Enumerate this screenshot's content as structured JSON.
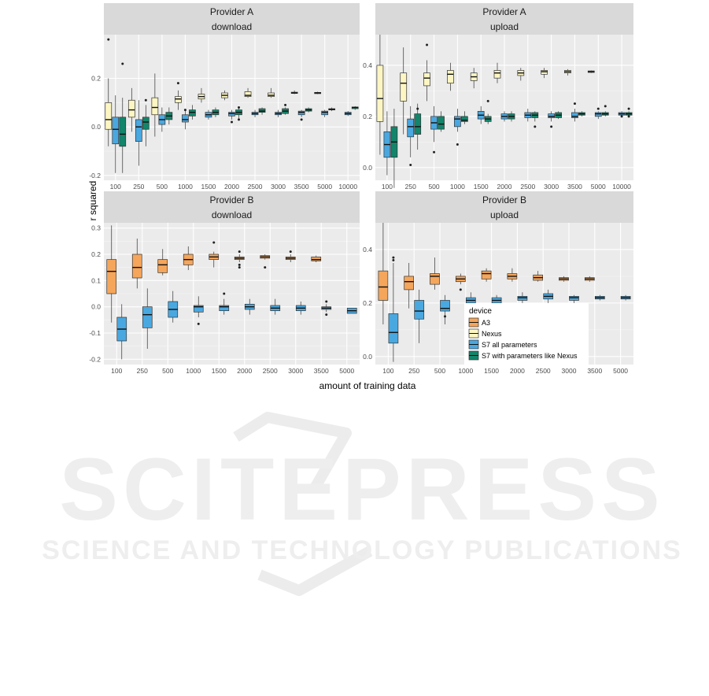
{
  "figure": {
    "ylabel": "r squared",
    "xlabel": "amount of training data",
    "legend_title": "device"
  },
  "watermark": {
    "line1": "SCITEPRESS",
    "line2": "SCIENCE AND TECHNOLOGY PUBLICATIONS"
  },
  "colors": {
    "A3": "#f5a65b",
    "Nexus": "#fdf6c3",
    "S7 all parameters": "#4aa8e0",
    "S7 with parameters like Nexus": "#12856a",
    "panel_bg": "#ebebeb",
    "strip_bg": "#d9d9d9"
  },
  "chart_data": [
    {
      "type": "box",
      "strip": [
        "Provider A",
        "download"
      ],
      "categories": [
        "100",
        "250",
        "500",
        "1000",
        "1500",
        "2000",
        "2500",
        "3000",
        "3500",
        "5000",
        "10000"
      ],
      "yticks": [
        -0.2,
        0.0,
        0.2
      ],
      "ylim": [
        -0.22,
        0.38
      ],
      "series": [
        {
          "name": "Nexus",
          "boxes": [
            [
              -0.08,
              -0.01,
              0.03,
              0.1,
              0.2,
              [
                0.36
              ]
            ],
            [
              -0.02,
              0.04,
              0.07,
              0.11,
              0.16,
              []
            ],
            [
              -0.04,
              0.05,
              0.08,
              0.12,
              0.22,
              []
            ],
            [
              0.07,
              0.1,
              0.115,
              0.125,
              0.15,
              [
                0.18
              ]
            ],
            [
              0.1,
              0.115,
              0.125,
              0.135,
              0.16,
              []
            ],
            [
              0.11,
              0.12,
              0.13,
              0.14,
              0.15,
              []
            ],
            [
              0.12,
              0.125,
              0.13,
              0.145,
              0.16,
              []
            ],
            [
              0.12,
              0.125,
              0.13,
              0.14,
              0.16,
              []
            ],
            [
              0.135,
              0.138,
              0.14,
              0.143,
              0.15,
              []
            ],
            [
              0.135,
              0.137,
              0.14,
              0.142,
              0.145,
              []
            ],
            null
          ]
        },
        {
          "name": "S7 all parameters",
          "boxes": [
            [
              -0.19,
              -0.07,
              -0.01,
              0.04,
              0.13,
              []
            ],
            [
              -0.16,
              -0.06,
              0.0,
              0.03,
              0.11,
              []
            ],
            [
              -0.02,
              0.01,
              0.03,
              0.05,
              0.08,
              []
            ],
            [
              -0.01,
              0.02,
              0.03,
              0.05,
              0.07,
              [
                0.07
              ]
            ],
            [
              0.03,
              0.04,
              0.05,
              0.06,
              0.07,
              []
            ],
            [
              0.03,
              0.045,
              0.055,
              0.06,
              0.07,
              [
                0.02
              ]
            ],
            [
              0.04,
              0.05,
              0.055,
              0.06,
              0.07,
              []
            ],
            [
              0.04,
              0.05,
              0.055,
              0.06,
              0.07,
              []
            ],
            [
              0.04,
              0.05,
              0.06,
              0.065,
              0.07,
              [
                0.03
              ]
            ],
            [
              0.04,
              0.05,
              0.06,
              0.065,
              0.07,
              []
            ],
            [
              0.045,
              0.05,
              0.055,
              0.06,
              0.065,
              []
            ]
          ]
        },
        {
          "name": "S7 with parameters like Nexus",
          "boxes": [
            [
              -0.19,
              -0.08,
              -0.03,
              0.04,
              0.12,
              [
                0.26
              ]
            ],
            [
              -0.08,
              -0.01,
              0.02,
              0.04,
              0.09,
              [
                0.11
              ]
            ],
            [
              0.01,
              0.03,
              0.045,
              0.06,
              0.08,
              []
            ],
            [
              0.03,
              0.045,
              0.06,
              0.07,
              0.09,
              []
            ],
            [
              0.04,
              0.05,
              0.06,
              0.07,
              0.08,
              []
            ],
            [
              0.03,
              0.05,
              0.06,
              0.07,
              0.08,
              [
                0.03,
                0.08
              ]
            ],
            [
              0.05,
              0.06,
              0.065,
              0.075,
              0.08,
              []
            ],
            [
              0.05,
              0.055,
              0.065,
              0.075,
              0.08,
              [
                0.09
              ]
            ],
            [
              0.06,
              0.065,
              0.07,
              0.075,
              0.08,
              []
            ],
            [
              0.065,
              0.07,
              0.072,
              0.075,
              0.08,
              []
            ],
            [
              0.07,
              0.075,
              0.08,
              0.082,
              0.085,
              []
            ]
          ]
        }
      ]
    },
    {
      "type": "box",
      "strip": [
        "Provider A",
        "upload"
      ],
      "categories": [
        "100",
        "250",
        "500",
        "1000",
        "1500",
        "2000",
        "2500",
        "3000",
        "3500",
        "5000",
        "10000"
      ],
      "yticks": [
        0.0,
        0.2,
        0.4
      ],
      "ylim": [
        -0.05,
        0.52
      ],
      "series": [
        {
          "name": "Nexus",
          "boxes": [
            [
              0.05,
              0.18,
              0.27,
              0.4,
              0.52,
              []
            ],
            [
              0.13,
              0.26,
              0.33,
              0.37,
              0.47,
              []
            ],
            [
              0.26,
              0.32,
              0.35,
              0.37,
              0.42,
              [
                0.48
              ]
            ],
            [
              0.3,
              0.33,
              0.365,
              0.38,
              0.41,
              []
            ],
            [
              0.31,
              0.34,
              0.355,
              0.37,
              0.39,
              []
            ],
            [
              0.33,
              0.35,
              0.37,
              0.38,
              0.41,
              []
            ],
            [
              0.34,
              0.36,
              0.37,
              0.38,
              0.39,
              []
            ],
            [
              0.35,
              0.365,
              0.375,
              0.38,
              0.39,
              []
            ],
            [
              0.36,
              0.37,
              0.375,
              0.38,
              0.385,
              []
            ],
            [
              0.37,
              0.372,
              0.375,
              0.378,
              0.38,
              []
            ],
            null
          ]
        },
        {
          "name": "S7 all parameters",
          "boxes": [
            [
              -0.03,
              0.04,
              0.09,
              0.14,
              0.22,
              []
            ],
            [
              0.04,
              0.12,
              0.16,
              0.19,
              0.24,
              [
                0.01
              ]
            ],
            [
              0.1,
              0.15,
              0.175,
              0.2,
              0.24,
              [
                0.06
              ]
            ],
            [
              0.14,
              0.16,
              0.19,
              0.2,
              0.23,
              [
                0.09
              ]
            ],
            [
              0.17,
              0.19,
              0.205,
              0.22,
              0.24,
              []
            ],
            [
              0.18,
              0.19,
              0.2,
              0.21,
              0.22,
              []
            ],
            [
              0.18,
              0.195,
              0.205,
              0.215,
              0.23,
              []
            ],
            [
              0.18,
              0.195,
              0.2,
              0.21,
              0.22,
              [
                0.16
              ]
            ],
            [
              0.18,
              0.195,
              0.2,
              0.215,
              0.23,
              [
                0.25
              ]
            ],
            [
              0.19,
              0.2,
              0.21,
              0.215,
              0.22,
              [
                0.23
              ]
            ],
            [
              0.2,
              0.205,
              0.21,
              0.215,
              0.22,
              [
                0.2
              ]
            ]
          ]
        },
        {
          "name": "S7 with parameters like Nexus",
          "boxes": [
            [
              -0.08,
              0.04,
              0.1,
              0.16,
              0.23,
              []
            ],
            [
              0.07,
              0.13,
              0.16,
              0.21,
              0.25,
              [
                0.23
              ]
            ],
            [
              0.14,
              0.15,
              0.17,
              0.2,
              0.22,
              []
            ],
            [
              0.17,
              0.18,
              0.185,
              0.2,
              0.22,
              []
            ],
            [
              0.17,
              0.18,
              0.19,
              0.2,
              0.21,
              [
                0.26
              ]
            ],
            [
              0.18,
              0.19,
              0.2,
              0.21,
              0.22,
              []
            ],
            [
              0.18,
              0.195,
              0.205,
              0.215,
              0.22,
              [
                0.16
              ]
            ],
            [
              0.19,
              0.195,
              0.205,
              0.215,
              0.22,
              []
            ],
            [
              0.2,
              0.205,
              0.21,
              0.215,
              0.22,
              []
            ],
            [
              0.2,
              0.205,
              0.21,
              0.215,
              0.22,
              [
                0.24
              ]
            ],
            [
              0.2,
              0.205,
              0.21,
              0.215,
              0.22,
              [
                0.23,
                0.2
              ]
            ]
          ]
        }
      ]
    },
    {
      "type": "box",
      "strip": [
        "Provider B",
        "download"
      ],
      "categories": [
        "100",
        "250",
        "500",
        "1000",
        "1500",
        "2000",
        "2500",
        "3000",
        "3500",
        "5000"
      ],
      "yticks": [
        -0.2,
        -0.1,
        0.0,
        0.1,
        0.2,
        0.3
      ],
      "ylim": [
        -0.22,
        0.32
      ],
      "series": [
        {
          "name": "A3",
          "boxes": [
            [
              -0.06,
              0.05,
              0.135,
              0.18,
              0.31,
              []
            ],
            [
              0.07,
              0.11,
              0.15,
              0.2,
              0.26,
              []
            ],
            [
              0.12,
              0.13,
              0.16,
              0.18,
              0.22,
              []
            ],
            [
              0.14,
              0.16,
              0.18,
              0.2,
              0.23,
              []
            ],
            [
              0.15,
              0.18,
              0.19,
              0.2,
              0.21,
              [
                0.245
              ]
            ],
            [
              0.17,
              0.18,
              0.185,
              0.19,
              0.2,
              [
                0.21,
                0.16,
                0.15
              ]
            ],
            [
              0.18,
              0.185,
              0.19,
              0.195,
              0.2,
              [
                0.15
              ]
            ],
            [
              0.17,
              0.18,
              0.185,
              0.19,
              0.2,
              [
                0.21
              ]
            ],
            [
              0.17,
              0.175,
              0.18,
              0.19,
              0.195,
              []
            ],
            null
          ]
        },
        {
          "name": "S7 all parameters",
          "boxes": [
            [
              -0.2,
              -0.13,
              -0.085,
              -0.04,
              0.01,
              []
            ],
            [
              -0.16,
              -0.08,
              -0.03,
              0.0,
              0.07,
              []
            ],
            [
              -0.06,
              -0.04,
              -0.01,
              0.02,
              0.06,
              []
            ],
            [
              -0.04,
              -0.02,
              0.0,
              0.005,
              0.04,
              [
                -0.065
              ]
            ],
            [
              -0.03,
              -0.015,
              0.0,
              0.005,
              0.03,
              [
                0.05
              ]
            ],
            [
              -0.03,
              -0.01,
              0.0,
              0.01,
              0.03,
              []
            ],
            [
              -0.03,
              -0.015,
              -0.005,
              0.005,
              0.03,
              []
            ],
            [
              -0.03,
              -0.015,
              -0.005,
              0.005,
              0.02,
              []
            ],
            [
              -0.02,
              -0.01,
              -0.005,
              0.0,
              0.01,
              [
                0.02,
                -0.03
              ]
            ],
            [
              -0.025,
              -0.025,
              -0.015,
              -0.005,
              -0.005,
              []
            ]
          ]
        }
      ]
    },
    {
      "type": "box",
      "strip": [
        "Provider B",
        "upload"
      ],
      "categories": [
        "100",
        "250",
        "500",
        "1000",
        "1500",
        "2000",
        "2500",
        "3000",
        "3500",
        "5000"
      ],
      "yticks": [
        0.0,
        0.2,
        0.4
      ],
      "ylim": [
        -0.03,
        0.5
      ],
      "series": [
        {
          "name": "A3",
          "boxes": [
            [
              0.12,
              0.21,
              0.26,
              0.32,
              0.5,
              []
            ],
            [
              0.18,
              0.25,
              0.28,
              0.3,
              0.35,
              []
            ],
            [
              0.25,
              0.27,
              0.3,
              0.31,
              0.37,
              []
            ],
            [
              0.27,
              0.28,
              0.29,
              0.3,
              0.31,
              [
                0.25
              ]
            ],
            [
              0.28,
              0.29,
              0.31,
              0.32,
              0.33,
              []
            ],
            [
              0.28,
              0.29,
              0.3,
              0.31,
              0.33,
              []
            ],
            [
              0.28,
              0.285,
              0.295,
              0.305,
              0.32,
              []
            ],
            [
              0.28,
              0.285,
              0.29,
              0.295,
              0.3,
              []
            ],
            [
              0.28,
              0.285,
              0.29,
              0.295,
              0.3,
              []
            ],
            null
          ]
        },
        {
          "name": "S7 all parameters",
          "boxes": [
            [
              -0.02,
              0.05,
              0.09,
              0.16,
              0.35,
              [
                0.36,
                0.37
              ]
            ],
            [
              0.05,
              0.14,
              0.17,
              0.21,
              0.25,
              []
            ],
            [
              0.12,
              0.17,
              0.18,
              0.21,
              0.23,
              [
                0.15
              ]
            ],
            [
              0.19,
              0.2,
              0.21,
              0.22,
              0.24,
              []
            ],
            [
              0.19,
              0.2,
              0.21,
              0.22,
              0.23,
              []
            ],
            [
              0.2,
              0.21,
              0.22,
              0.225,
              0.24,
              []
            ],
            [
              0.2,
              0.215,
              0.225,
              0.235,
              0.25,
              []
            ],
            [
              0.2,
              0.21,
              0.22,
              0.225,
              0.23,
              []
            ],
            [
              0.21,
              0.215,
              0.22,
              0.225,
              0.23,
              []
            ],
            [
              0.21,
              0.215,
              0.22,
              0.225,
              0.23,
              []
            ]
          ]
        }
      ]
    }
  ]
}
